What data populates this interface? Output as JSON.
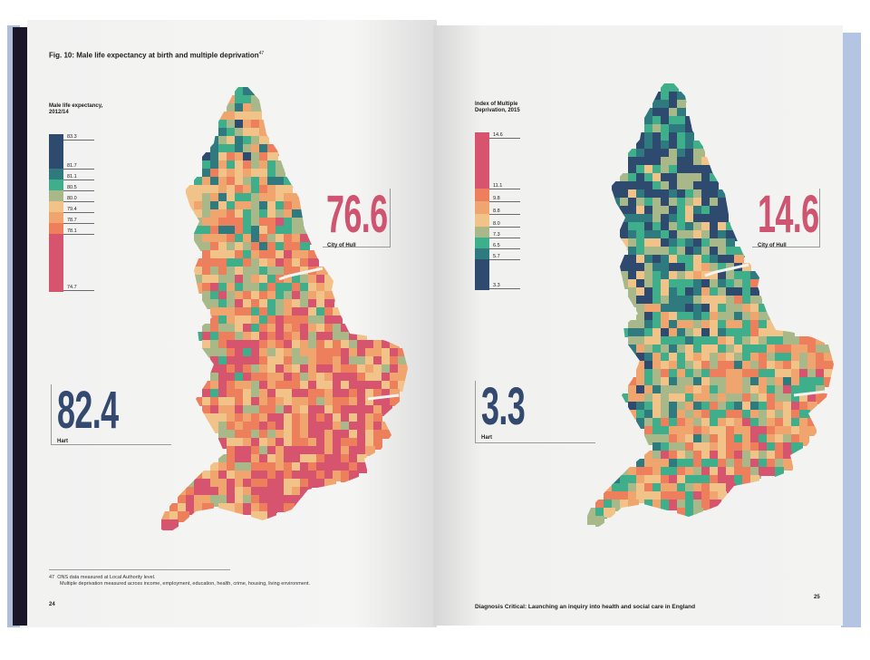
{
  "left_page": {
    "figure_title": "Fig. 10: Male life expectancy at birth and multiple deprivation",
    "figure_title_ref": "47",
    "legend": {
      "title": "Male life expectancy, 2012/14",
      "labels": [
        "83.3",
        "81.7",
        "81.1",
        "80.5",
        "80.0",
        "79.4",
        "78.7",
        "78.1",
        "74.7"
      ],
      "colors": [
        "#2f4a6f",
        "#2f7a7f",
        "#3fae8b",
        "#a9b889",
        "#f1c389",
        "#f0a56f",
        "#ee7f5c",
        "#d6546d"
      ]
    },
    "callout_high": {
      "value": "76.6",
      "label": "City of Hull",
      "color": "#cf5470"
    },
    "callout_low": {
      "value": "82.4",
      "label": "Hart",
      "color": "#33496f"
    },
    "footnote_ref": "47",
    "footnote_line1": "ONS data measured at Local Authority level.",
    "footnote_line2": "Multiple deprivation measured across income, employment, education, health, crime, housing, living environment.",
    "page_number": "24"
  },
  "right_page": {
    "legend": {
      "title": "Index of Multiple Deprivation, 2015",
      "labels": [
        "14.6",
        "11.1",
        "9.8",
        "8.8",
        "8.0",
        "7.3",
        "6.5",
        "5.7",
        "3.3"
      ],
      "colors": [
        "#d6546d",
        "#ee7f5c",
        "#f0a56f",
        "#f1c389",
        "#a9b889",
        "#3fae8b",
        "#2f7a7f",
        "#2f4a6f"
      ]
    },
    "callout_high": {
      "value": "14.6",
      "label": "City of Hull",
      "color": "#cf5470"
    },
    "callout_low": {
      "value": "3.3",
      "label": "Hart",
      "color": "#33496f"
    },
    "running_title": "Diagnosis Critical: Launching an inquiry into health and social care in England",
    "page_number": "25"
  }
}
